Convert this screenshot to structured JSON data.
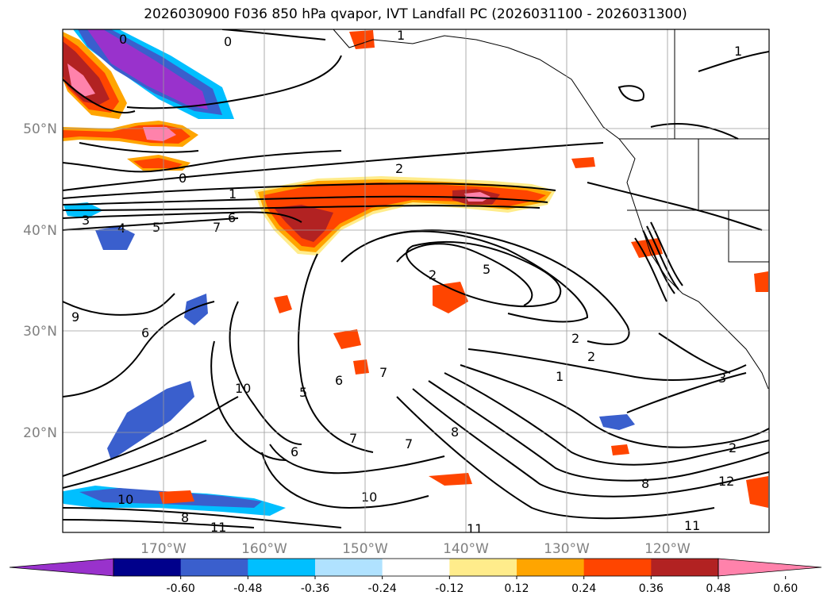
{
  "title": "2026030900 F036 850 hPa qvapor, IVT Landfall PC (2026031100 - 2026031300)",
  "map": {
    "lon_ticks": [
      "170°W",
      "160°W",
      "150°W",
      "140°W",
      "130°W",
      "120°W"
    ],
    "lat_ticks": [
      "50°N",
      "40°N",
      "30°N",
      "20°N"
    ],
    "contour_labels": [
      "0",
      "0",
      "0",
      "1",
      "1",
      "1",
      "2",
      "2",
      "2",
      "2",
      "3",
      "3",
      "4",
      "5",
      "5",
      "6",
      "6",
      "6",
      "7",
      "7",
      "7",
      "8",
      "8",
      "8",
      "9",
      "10",
      "10",
      "10",
      "11",
      "11",
      "11",
      "12",
      "2",
      "1",
      "5",
      "7",
      "6"
    ]
  },
  "colorbar": {
    "labels": [
      "-0.60",
      "-0.48",
      "-0.36",
      "-0.24",
      "-0.12",
      "0.12",
      "0.24",
      "0.36",
      "0.48",
      "0.60"
    ],
    "colors": [
      "#9932cc",
      "#00008b",
      "#3a5fcd",
      "#00bfff",
      "#b0e2ff",
      "#ffffff",
      "#ffec8b",
      "#ffa500",
      "#ff4500",
      "#b22222",
      "#ff82ab"
    ]
  }
}
